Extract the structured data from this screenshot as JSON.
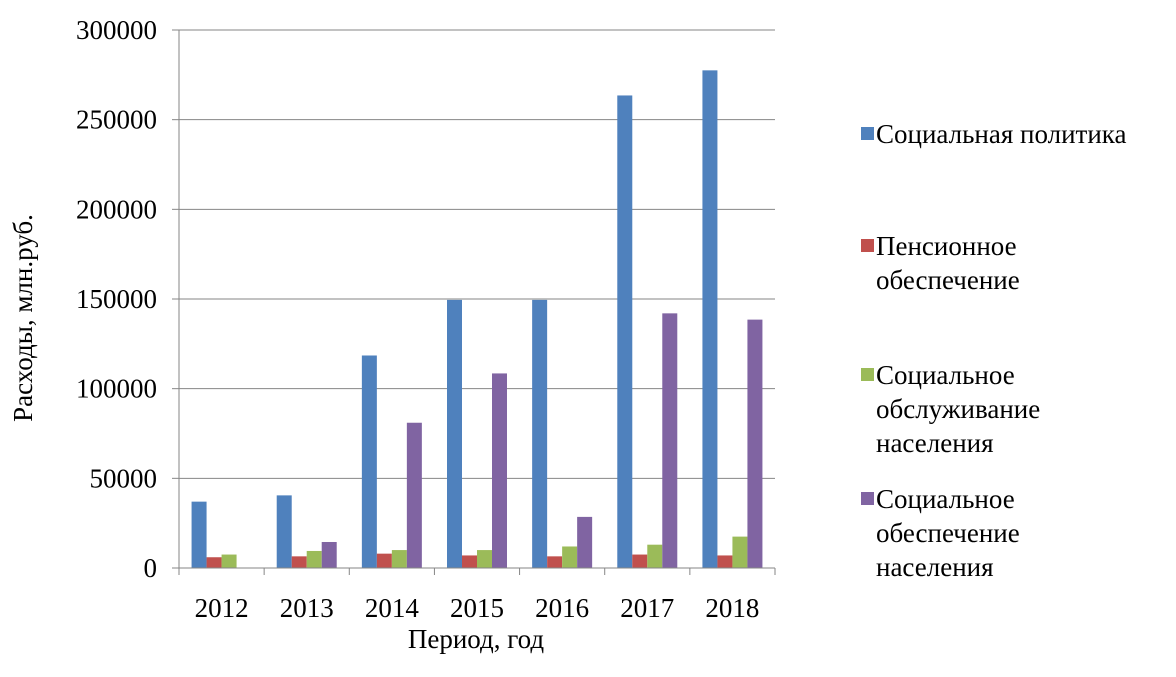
{
  "chart_data": {
    "type": "bar",
    "title": "",
    "xlabel": "Период, год",
    "ylabel": "Расходы, млн.руб.",
    "categories": [
      "2012",
      "2013",
      "2014",
      "2015",
      "2016",
      "2017",
      "2018"
    ],
    "ylim": [
      0,
      300000
    ],
    "yticks": [
      "0",
      "50000",
      "100000",
      "150000",
      "200000",
      "250000",
      "300000"
    ],
    "grid": true,
    "legend_position": "right",
    "series": [
      {
        "name": "Социальная политика",
        "color": "#4F81BD",
        "values": [
          37000,
          40500,
          118500,
          149500,
          149500,
          263500,
          277500
        ]
      },
      {
        "name": "Пенсионное обеспечение",
        "color": "#C0504D",
        "values": [
          6000,
          6500,
          8000,
          7000,
          6500,
          7500,
          7000
        ]
      },
      {
        "name": "Социальное обслуживание населения",
        "color": "#9BBB59",
        "values": [
          7500,
          9500,
          10000,
          10000,
          12000,
          13000,
          17500
        ]
      },
      {
        "name": "Социальное обеспечение населения",
        "color": "#8064A2",
        "values": [
          0,
          14500,
          81000,
          108500,
          28500,
          142000,
          138500
        ]
      }
    ]
  },
  "legend": {
    "items": [
      {
        "lines": [
          "Социальная политика"
        ]
      },
      {
        "lines": [
          "Пенсионное",
          "обеспечение"
        ]
      },
      {
        "lines": [
          "Социальное",
          "обслуживание",
          "населения"
        ]
      },
      {
        "lines": [
          "Социальное",
          "обеспечение",
          "населения"
        ]
      }
    ]
  }
}
